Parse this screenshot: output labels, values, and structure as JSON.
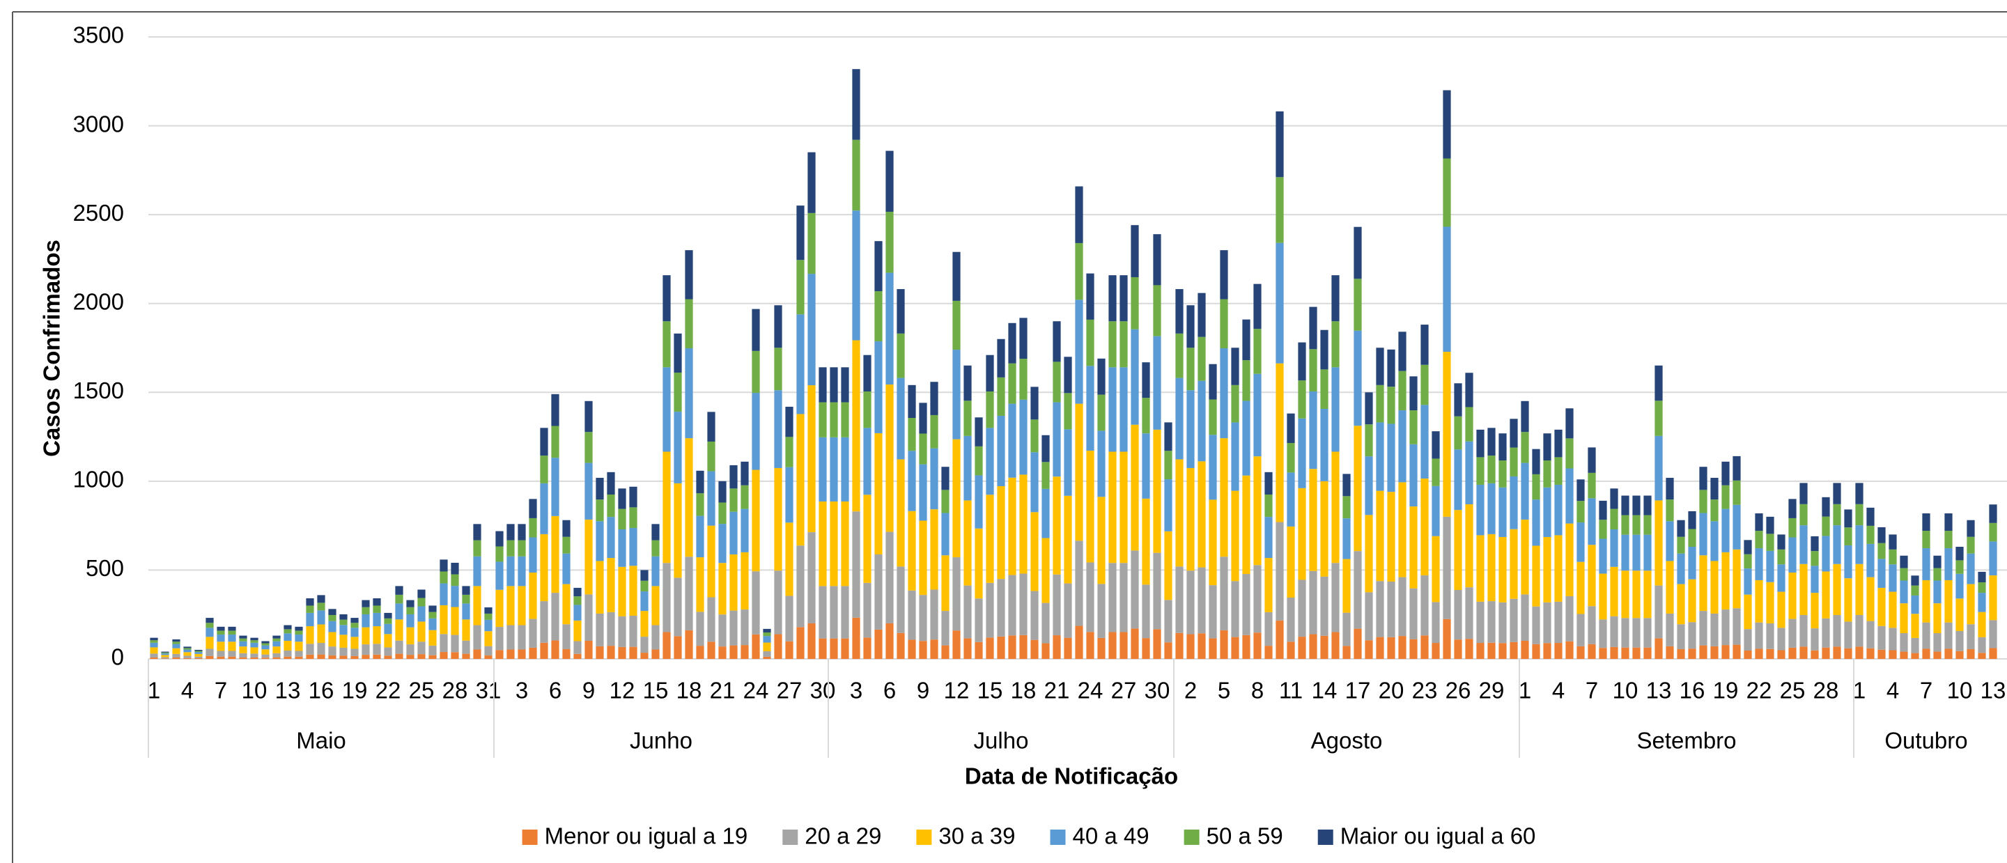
{
  "chart_data": {
    "type": "stacked_bar",
    "x_label": "Data de Notificação",
    "y_label": "Casos Confrimados",
    "ylim": [
      0,
      3500
    ],
    "yticks": [
      0,
      500,
      1000,
      1500,
      2000,
      2500,
      3000,
      3500
    ],
    "grid": true,
    "legend": "bottom",
    "groups": [
      {
        "label": "Maio",
        "count": 31
      },
      {
        "label": "Junho",
        "count": 30
      },
      {
        "label": "Julho",
        "count": 31
      },
      {
        "label": "Agosto",
        "count": 31
      },
      {
        "label": "Setembro",
        "count": 30
      },
      {
        "label": "Outubro",
        "count": 13
      }
    ],
    "categories": [
      "1",
      null,
      null,
      "4",
      null,
      null,
      "7",
      null,
      null,
      "10",
      null,
      null,
      "13",
      null,
      null,
      "16",
      null,
      null,
      "19",
      null,
      null,
      "22",
      null,
      null,
      "25",
      null,
      null,
      "28",
      null,
      null,
      "31",
      null,
      null,
      "3",
      null,
      null,
      "6",
      null,
      null,
      "9",
      null,
      null,
      "12",
      null,
      null,
      "15",
      null,
      null,
      "18",
      null,
      null,
      "21",
      null,
      null,
      "24",
      null,
      null,
      "27",
      null,
      null,
      "30",
      null,
      null,
      "3",
      null,
      null,
      "6",
      null,
      null,
      "9",
      null,
      null,
      "12",
      null,
      null,
      "15",
      null,
      null,
      "18",
      null,
      null,
      "21",
      null,
      null,
      "24",
      null,
      null,
      "27",
      null,
      null,
      "30",
      null,
      null,
      "2",
      null,
      null,
      "5",
      null,
      null,
      "8",
      null,
      null,
      "11",
      null,
      null,
      "14",
      null,
      null,
      "17",
      null,
      null,
      "20",
      null,
      null,
      "23",
      null,
      null,
      "26",
      null,
      null,
      "29",
      null,
      null,
      "1",
      null,
      null,
      "4",
      null,
      null,
      "7",
      null,
      null,
      "10",
      null,
      null,
      "13",
      null,
      null,
      "16",
      null,
      null,
      "19",
      null,
      null,
      "22",
      null,
      null,
      "25",
      null,
      null,
      "28",
      null,
      null,
      "1",
      null,
      null,
      "4",
      null,
      null,
      "7",
      null,
      null,
      "10",
      null,
      null,
      "13"
    ],
    "series": [
      {
        "name": "Menor ou igual a 19",
        "color": "#ed7d31",
        "values": [
          8,
          3,
          8,
          5,
          4,
          16,
          13,
          13,
          9,
          8,
          7,
          9,
          13,
          13,
          24,
          25,
          20,
          18,
          16,
          23,
          24,
          18,
          29,
          23,
          27,
          21,
          39,
          38,
          29,
          53,
          20,
          50,
          53,
          53,
          63,
          91,
          104,
          55,
          28,
          102,
          71,
          74,
          67,
          68,
          35,
          53,
          151,
          128,
          161,
          74,
          97,
          70,
          76,
          78,
          138,
          12,
          139,
          99,
          179,
          200,
          115,
          115,
          115,
          232,
          120,
          165,
          200,
          146,
          108,
          101,
          109,
          76,
          160,
          116,
          95,
          120,
          126,
          132,
          134,
          107,
          88,
          133,
          119,
          186,
          152,
          118,
          151,
          151,
          171,
          117,
          167,
          93,
          146,
          139,
          144,
          116,
          161,
          123,
          134,
          148,
          74,
          216,
          97,
          125,
          139,
          130,
          151,
          73,
          170,
          105,
          123,
          122,
          129,
          111,
          132,
          90,
          224,
          109,
          113,
          90,
          91,
          89,
          95,
          102,
          83,
          89,
          90,
          99,
          71,
          83,
          62,
          67,
          64,
          64,
          64,
          116,
          71,
          55,
          58,
          76,
          71,
          78,
          80,
          47,
          57,
          56,
          49,
          63,
          69,
          48,
          64,
          69,
          59,
          69,
          60,
          52,
          49,
          41,
          33,
          57,
          41,
          57,
          44,
          55,
          34,
          61
        ]
      },
      {
        "name": "20 a 29",
        "color": "#a5a5a5",
        "values": [
          22,
          7,
          20,
          13,
          9,
          41,
          32,
          32,
          23,
          22,
          18,
          23,
          34,
          32,
          61,
          65,
          50,
          45,
          41,
          59,
          61,
          47,
          74,
          59,
          70,
          54,
          101,
          97,
          74,
          137,
          52,
          130,
          137,
          137,
          162,
          234,
          268,
          140,
          72,
          261,
          184,
          189,
          173,
          175,
          90,
          137,
          389,
          329,
          414,
          191,
          250,
          180,
          196,
          200,
          355,
          31,
          358,
          256,
          459,
          513,
          295,
          295,
          295,
          598,
          308,
          423,
          515,
          374,
          277,
          259,
          281,
          194,
          412,
          297,
          245,
          308,
          324,
          340,
          346,
          275,
          227,
          342,
          306,
          479,
          391,
          304,
          389,
          389,
          439,
          301,
          430,
          239,
          374,
          358,
          371,
          299,
          414,
          315,
          344,
          380,
          189,
          554,
          248,
          320,
          356,
          333,
          389,
          187,
          437,
          270,
          315,
          313,
          331,
          286,
          338,
          230,
          576,
          279,
          290,
          232,
          234,
          229,
          243,
          261,
          212,
          229,
          232,
          254,
          182,
          214,
          160,
          173,
          166,
          166,
          166,
          297,
          184,
          140,
          149,
          194,
          184,
          200,
          205,
          121,
          148,
          144,
          126,
          162,
          178,
          124,
          164,
          178,
          151,
          178,
          153,
          133,
          126,
          104,
          85,
          148,
          104,
          148,
          113,
          140,
          88,
          157
        ]
      },
      {
        "name": "30 a 39",
        "color": "#ffc000",
        "values": [
          35,
          12,
          32,
          20,
          15,
          67,
          52,
          52,
          38,
          35,
          29,
          38,
          55,
          52,
          99,
          104,
          81,
          73,
          67,
          96,
          99,
          75,
          119,
          96,
          113,
          87,
          162,
          157,
          119,
          220,
          84,
          209,
          220,
          220,
          261,
          377,
          432,
          226,
          116,
          421,
          296,
          305,
          278,
          281,
          145,
          220,
          626,
          531,
          667,
          307,
          403,
          290,
          316,
          322,
          571,
          49,
          577,
          412,
          740,
          827,
          476,
          476,
          476,
          963,
          496,
          682,
          829,
          603,
          447,
          418,
          452,
          313,
          664,
          479,
          394,
          496,
          522,
          548,
          557,
          444,
          365,
          551,
          493,
          771,
          629,
          490,
          626,
          626,
          708,
          484,
          693,
          386,
          603,
          577,
          597,
          481,
          667,
          508,
          554,
          612,
          305,
          893,
          400,
          516,
          574,
          537,
          626,
          302,
          705,
          435,
          508,
          505,
          534,
          461,
          545,
          371,
          928,
          450,
          467,
          374,
          377,
          368,
          392,
          421,
          342,
          368,
          374,
          409,
          293,
          345,
          258,
          278,
          267,
          267,
          267,
          479,
          296,
          226,
          241,
          313,
          296,
          322,
          331,
          194,
          238,
          232,
          203,
          261,
          287,
          200,
          264,
          287,
          244,
          287,
          247,
          215,
          203,
          168,
          136,
          238,
          168,
          238,
          183,
          226,
          142,
          252
        ]
      },
      {
        "name": "40 a 49",
        "color": "#5b9bd5",
        "values": [
          26,
          9,
          24,
          15,
          11,
          51,
          40,
          40,
          29,
          26,
          22,
          29,
          42,
          40,
          75,
          79,
          62,
          55,
          51,
          73,
          75,
          57,
          90,
          73,
          86,
          66,
          123,
          119,
          90,
          167,
          64,
          158,
          167,
          167,
          198,
          286,
          328,
          172,
          88,
          319,
          224,
          231,
          211,
          213,
          110,
          167,
          475,
          403,
          506,
          233,
          306,
          220,
          240,
          244,
          433,
          37,
          438,
          312,
          561,
          627,
          361,
          361,
          361,
          730,
          376,
          517,
          629,
          458,
          339,
          317,
          343,
          238,
          504,
          363,
          299,
          376,
          396,
          416,
          422,
          337,
          277,
          418,
          374,
          585,
          477,
          372,
          475,
          475,
          537,
          367,
          526,
          293,
          458,
          438,
          453,
          365,
          506,
          385,
          420,
          464,
          231,
          678,
          304,
          392,
          436,
          407,
          475,
          229,
          535,
          330,
          385,
          383,
          405,
          350,
          414,
          282,
          704,
          341,
          354,
          284,
          286,
          279,
          297,
          319,
          260,
          279,
          284,
          310,
          222,
          262,
          196,
          211,
          202,
          202,
          202,
          363,
          224,
          172,
          183,
          238,
          224,
          244,
          251,
          147,
          180,
          176,
          154,
          198,
          218,
          152,
          200,
          218,
          185,
          218,
          187,
          163,
          154,
          128,
          103,
          180,
          128,
          180,
          139,
          172,
          108,
          191
        ]
      },
      {
        "name": "50 a 59",
        "color": "#70ad47",
        "values": [
          14,
          5,
          13,
          8,
          6,
          28,
          22,
          22,
          16,
          14,
          12,
          16,
          23,
          22,
          41,
          43,
          34,
          30,
          28,
          40,
          41,
          31,
          49,
          40,
          47,
          36,
          67,
          65,
          49,
          91,
          35,
          86,
          91,
          91,
          108,
          156,
          179,
          94,
          48,
          174,
          122,
          126,
          115,
          116,
          60,
          91,
          259,
          220,
          276,
          127,
          167,
          120,
          131,
          133,
          236,
          20,
          239,
          170,
          306,
          342,
          197,
          197,
          197,
          398,
          205,
          282,
          343,
          250,
          185,
          173,
          187,
          130,
          275,
          198,
          163,
          205,
          216,
          227,
          230,
          184,
          151,
          228,
          204,
          319,
          260,
          203,
          259,
          259,
          293,
          200,
          287,
          160,
          250,
          239,
          247,
          199,
          276,
          210,
          229,
          253,
          126,
          370,
          166,
          214,
          238,
          222,
          259,
          125,
          292,
          180,
          210,
          209,
          221,
          191,
          226,
          154,
          384,
          186,
          193,
          155,
          156,
          152,
          162,
          174,
          142,
          152,
          155,
          169,
          121,
          143,
          107,
          115,
          110,
          110,
          110,
          198,
          122,
          94,
          100,
          130,
          122,
          133,
          137,
          80,
          98,
          96,
          84,
          108,
          119,
          83,
          109,
          119,
          101,
          119,
          102,
          89,
          84,
          70,
          56,
          98,
          70,
          98,
          76,
          94,
          59,
          104
        ]
      },
      {
        "name": "Maior ou igual a 60",
        "color": "#264478",
        "values": [
          14,
          5,
          13,
          8,
          6,
          28,
          22,
          22,
          16,
          14,
          12,
          16,
          23,
          22,
          41,
          43,
          34,
          30,
          28,
          40,
          41,
          31,
          49,
          40,
          47,
          36,
          67,
          65,
          49,
          91,
          35,
          86,
          91,
          91,
          108,
          156,
          179,
          94,
          48,
          174,
          122,
          126,
          115,
          116,
          60,
          91,
          259,
          220,
          276,
          127,
          167,
          120,
          131,
          133,
          236,
          20,
          239,
          170,
          306,
          342,
          197,
          197,
          197,
          398,
          205,
          282,
          343,
          250,
          185,
          173,
          187,
          130,
          275,
          198,
          163,
          205,
          216,
          227,
          230,
          184,
          151,
          228,
          204,
          319,
          260,
          203,
          259,
          259,
          293,
          200,
          287,
          160,
          250,
          239,
          247,
          199,
          276,
          210,
          229,
          253,
          126,
          370,
          166,
          214,
          238,
          222,
          259,
          125,
          292,
          180,
          210,
          209,
          221,
          191,
          226,
          154,
          384,
          186,
          193,
          155,
          156,
          152,
          162,
          174,
          142,
          152,
          155,
          169,
          121,
          143,
          107,
          115,
          110,
          110,
          110,
          198,
          122,
          94,
          100,
          130,
          122,
          133,
          137,
          80,
          98,
          96,
          84,
          108,
          119,
          83,
          109,
          119,
          101,
          119,
          102,
          89,
          84,
          70,
          56,
          98,
          70,
          98,
          76,
          94,
          59,
          104
        ]
      }
    ]
  }
}
